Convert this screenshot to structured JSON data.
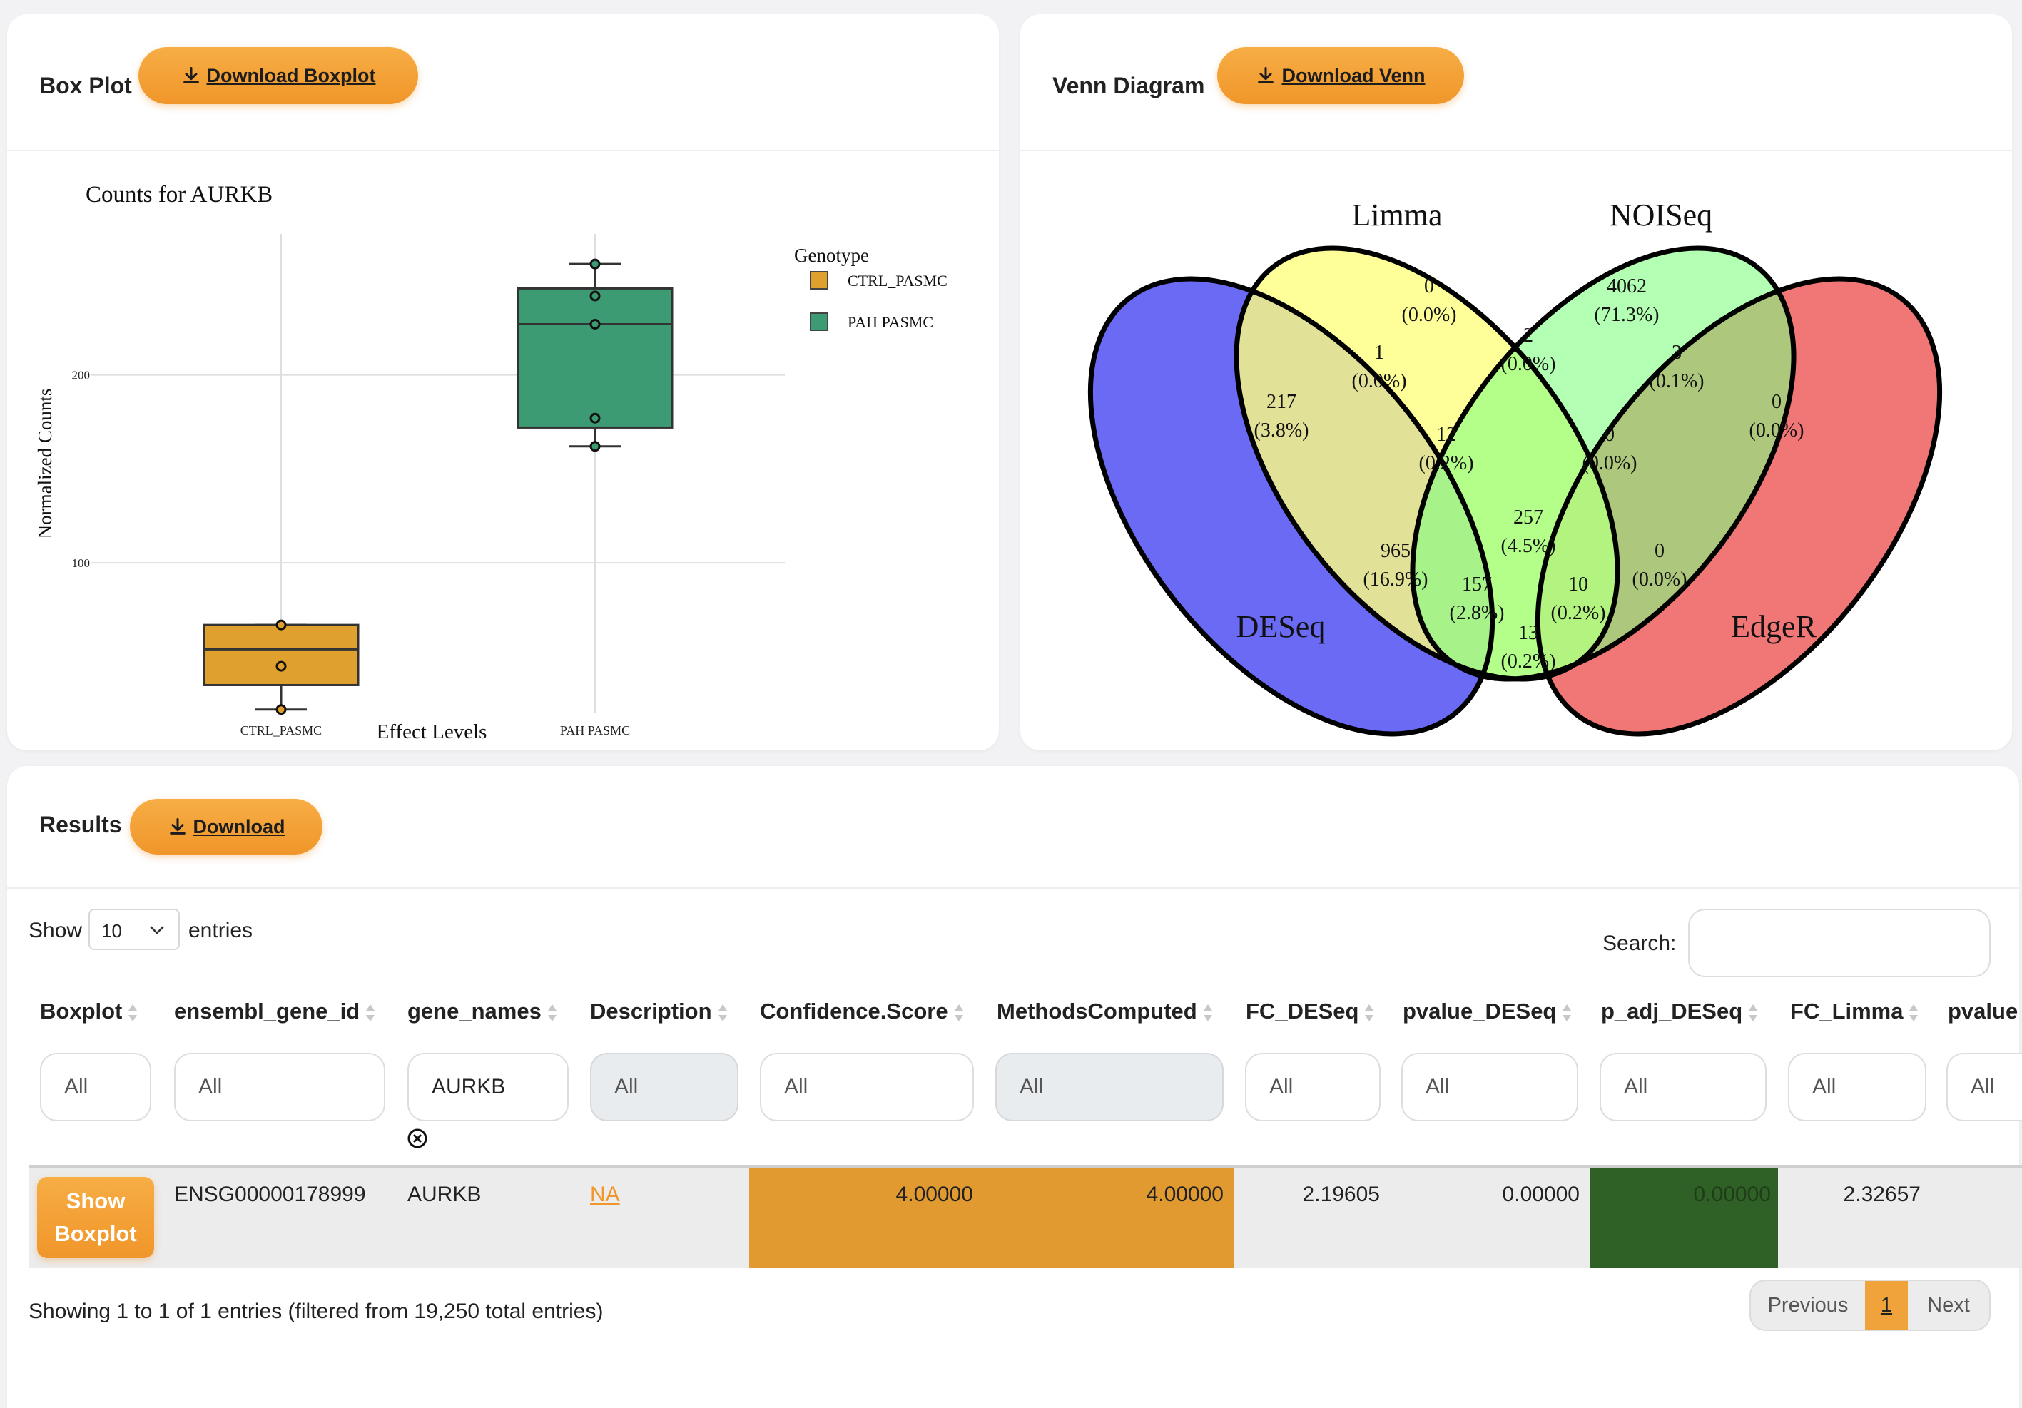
{
  "boxplot_card": {
    "title": "Box Plot",
    "download_label": "Download Boxplot",
    "chart_title": "Counts for AURKB"
  },
  "venn_card": {
    "title": "Venn Diagram",
    "download_label": "Download Venn"
  },
  "chart_data": [
    {
      "type": "box",
      "title": "Counts for AURKB",
      "xlabel": "Effect Levels",
      "ylabel": "Normalized Counts",
      "ylim": [
        20,
        275
      ],
      "yticks": [
        100,
        200
      ],
      "categories": [
        "CTRL_PASMC",
        "PAH PASMC"
      ],
      "legend_title": "Genotype",
      "legend_position": "right",
      "grid": true,
      "series": [
        {
          "name": "CTRL_PASMC",
          "color": "#e0a02e",
          "q1": 35,
          "median": 54,
          "q3": 67,
          "min": 22,
          "max": 67,
          "points": [
            22,
            45,
            67
          ]
        },
        {
          "name": "PAH PASMC",
          "color": "#3d9b73",
          "q1": 172,
          "median": 227,
          "q3": 246,
          "min": 162,
          "max": 259,
          "points": [
            162,
            177,
            227,
            242,
            259
          ]
        }
      ]
    },
    {
      "type": "venn",
      "sets": [
        {
          "name": "Limma",
          "color": "#ffff80"
        },
        {
          "name": "NOISeq",
          "color": "#80ff80"
        },
        {
          "name": "DESeq",
          "color": "#6a6af5"
        },
        {
          "name": "EdgeR",
          "color": "#f07070"
        }
      ],
      "regions": [
        {
          "sets": [
            "Limma"
          ],
          "count": "0",
          "pct": "(0.0%)"
        },
        {
          "sets": [
            "NOISeq"
          ],
          "count": "4062",
          "pct": "(71.3%)"
        },
        {
          "sets": [
            "DESeq"
          ],
          "count": "217",
          "pct": "(3.8%)"
        },
        {
          "sets": [
            "EdgeR"
          ],
          "count": "0",
          "pct": "(0.0%)"
        },
        {
          "sets": [
            "Limma",
            "NOISeq"
          ],
          "count": "2",
          "pct": "(0.0%)"
        },
        {
          "sets": [
            "Limma",
            "DESeq"
          ],
          "count": "1",
          "pct": "(0.0%)"
        },
        {
          "sets": [
            "NOISeq",
            "EdgeR"
          ],
          "count": "3",
          "pct": "(0.1%)"
        },
        {
          "sets": [
            "Limma",
            "NOISeq",
            "DESeq"
          ],
          "count": "12",
          "pct": "(0.2%)"
        },
        {
          "sets": [
            "Limma",
            "NOISeq",
            "EdgeR"
          ],
          "count": "0",
          "pct": "(0.0%)"
        },
        {
          "sets": [
            "Limma",
            "NOISeq",
            "DESeq",
            "EdgeR"
          ],
          "count": "257",
          "pct": "(4.5%)"
        },
        {
          "sets": [
            "Limma",
            "DESeq"
          ],
          "count": "965",
          "pct": "(16.9%)"
        },
        {
          "sets": [
            "NOISeq",
            "EdgeR"
          ],
          "count": "0",
          "pct": "(0.0%)"
        },
        {
          "sets": [
            "Limma",
            "DESeq",
            "EdgeR"
          ],
          "count": "157",
          "pct": "(2.8%)"
        },
        {
          "sets": [
            "NOISeq",
            "DESeq",
            "EdgeR"
          ],
          "count": "10",
          "pct": "(0.2%)"
        },
        {
          "sets": [
            "DESeq",
            "EdgeR"
          ],
          "count": "13",
          "pct": "(0.2%)"
        }
      ]
    }
  ],
  "results": {
    "title": "Results",
    "download_label": "Download",
    "show_label": "Show",
    "entries_value": "10",
    "entries_label": "entries",
    "search_label": "Search:",
    "columns": [
      "Boxplot",
      "ensembl_gene_id",
      "gene_names",
      "Description",
      "Confidence.Score",
      "MethodsComputed",
      "FC_DESeq",
      "pvalue_DESeq",
      "p_adj_DESeq",
      "FC_Limma",
      "pvalue"
    ],
    "filters": [
      "All",
      "All",
      "AURKB",
      "All",
      "All",
      "All",
      "All",
      "All",
      "All",
      "All",
      "All"
    ],
    "row": {
      "button": "Show Boxplot",
      "ensembl_gene_id": "ENSG00000178999",
      "gene_names": "AURKB",
      "description": "NA",
      "confidence_score": "4.00000",
      "methods_computed": "4.00000",
      "fc_deseq": "2.19605",
      "pvalue_deseq": "0.00000",
      "p_adj_deseq": "0.00000",
      "fc_limma": "2.32657"
    },
    "info": "Showing 1 to 1 of 1 entries (filtered from 19,250 total entries)",
    "pagination": {
      "previous": "Previous",
      "current": "1",
      "next": "Next"
    }
  },
  "colors": {
    "accent": "#f0962a",
    "highlight_orange": "#e09a30",
    "highlight_green": "#2f6126"
  }
}
